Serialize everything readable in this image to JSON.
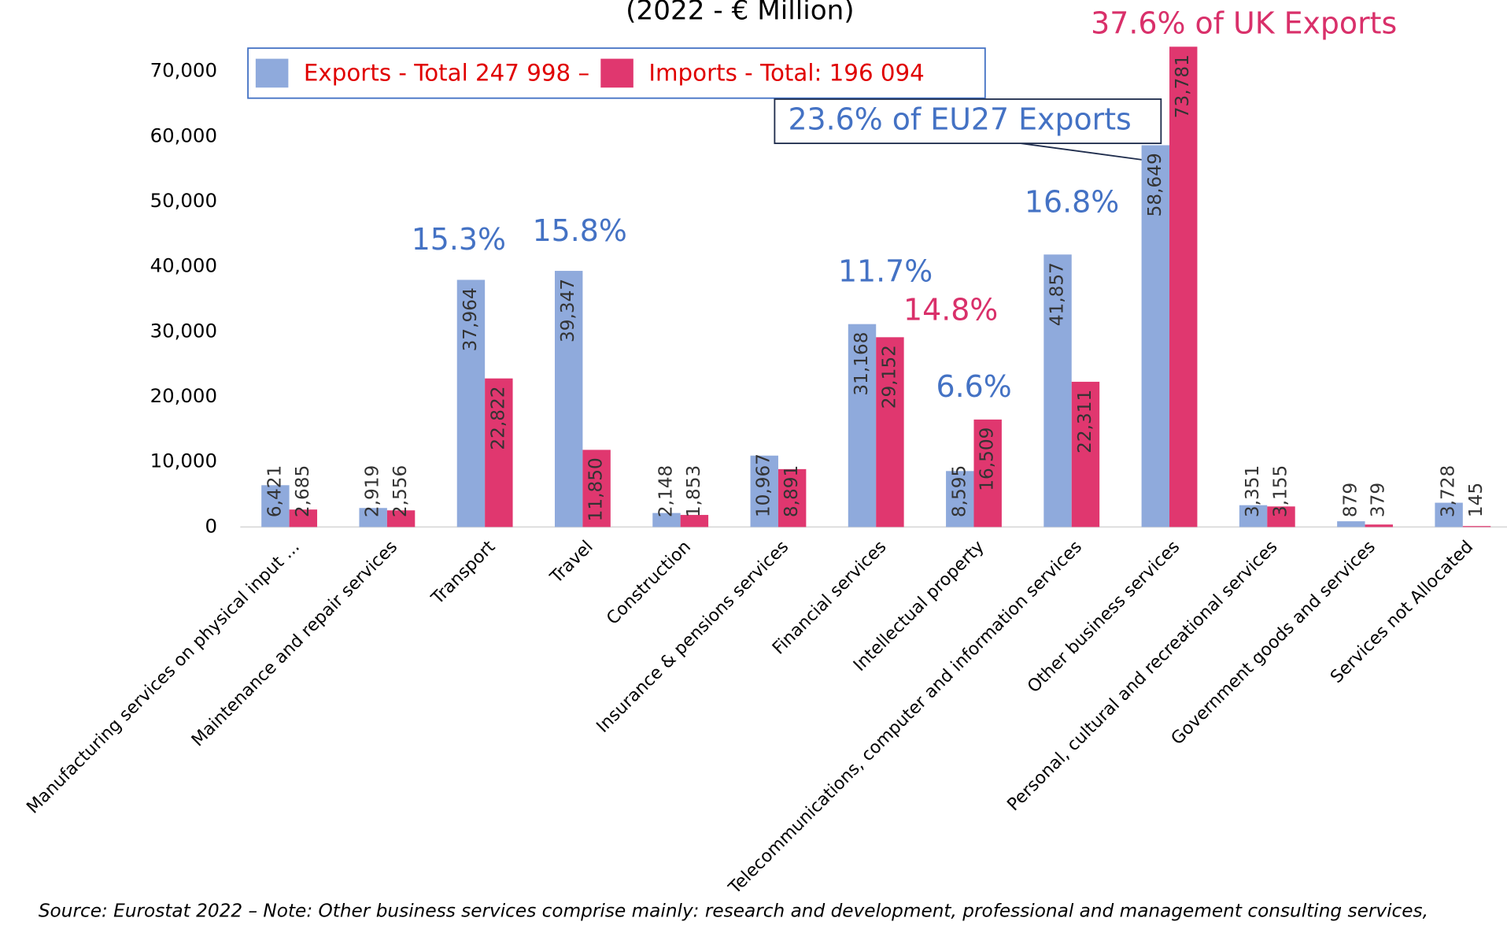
{
  "chart_data": {
    "type": "bar",
    "title": "(2022 - € Million)",
    "categories": [
      "Manufacturing services on physical input ...",
      "Maintenance and repair services",
      "Transport",
      "Travel",
      "Construction",
      "Insurance & pensions services",
      "Financial services",
      "Intellectual property",
      "Telecommunications, computer and information services",
      "Other business services",
      "Personal, cultural and recreational services",
      "Government goods and services",
      "Services not Allocated"
    ],
    "series": [
      {
        "name": "Exports - Total 247 998 –",
        "color": "#8faadc",
        "values": [
          6421,
          2919,
          37964,
          39347,
          2148,
          10967,
          31168,
          8595,
          41857,
          58649,
          3351,
          879,
          3728
        ],
        "value_labels": [
          "6,421",
          "2,919",
          "37,964",
          "39,347",
          "2,148",
          "10,967",
          "31,168",
          "8,595",
          "41,857",
          "58,649",
          "3,351",
          "879",
          "3,728"
        ]
      },
      {
        "name": "Imports - Total: 196 094",
        "color": "#e0376f",
        "values": [
          2685,
          2556,
          22822,
          11850,
          1853,
          8891,
          29152,
          16509,
          22311,
          73781,
          3155,
          379,
          145
        ],
        "value_labels": [
          "2,685",
          "2,556",
          "22,822",
          "11,850",
          "1,853",
          "8,891",
          "29,152",
          "16,509",
          "22,311",
          "73,781",
          "3,155",
          "379",
          "145"
        ]
      }
    ],
    "ylim": [
      0,
      74000
    ],
    "yticks": [
      0,
      {
        "value": 10000,
        "label": "10,000"
      },
      {
        "value": 20000,
        "label": "20,000"
      },
      {
        "value": 30000,
        "label": "30,000"
      },
      {
        "value": 40000,
        "label": "40,000"
      },
      {
        "value": 50000,
        "label": "50,000"
      },
      {
        "value": 60000,
        "label": "60,000"
      },
      {
        "value": 70000,
        "label": "70,000"
      }
    ],
    "annotations": [
      "37.6% of UK Exports",
      "23.6% of EU27 Exports",
      "15.3%",
      "15.8%",
      "11.7%",
      "14.8%",
      "6.6%",
      "16.8%"
    ],
    "source": "Source: Eurostat 2022 – Note: Other business services comprise mainly: research and development, professional and management consulting services,"
  }
}
